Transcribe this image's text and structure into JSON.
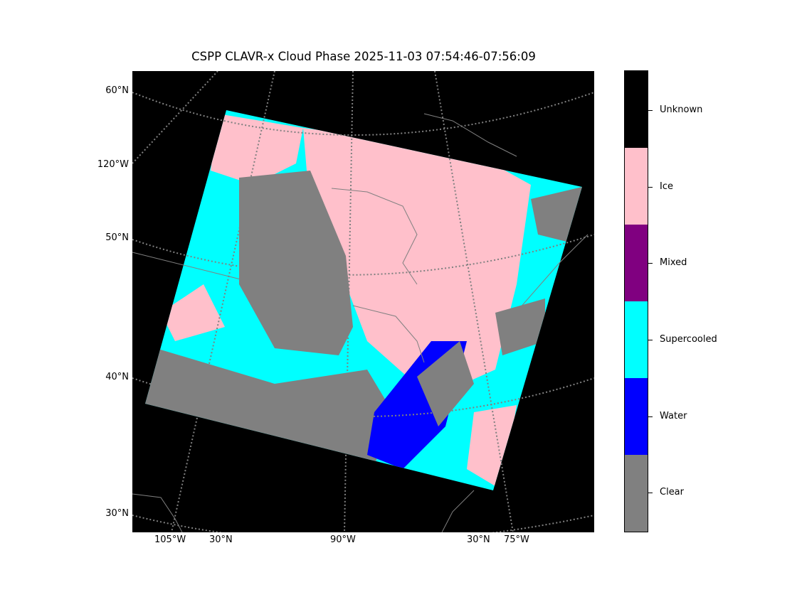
{
  "title": "CSPP CLAVR-x Cloud Phase 2025-11-03 07:54:46-07:56:09",
  "map": {
    "background_color": "#000000",
    "graticule_color": "#808080",
    "coastline_color": "#808080",
    "lat_labels_left": [
      "60°N",
      "120°W",
      "50°N",
      "40°N",
      "30°N"
    ],
    "lon_labels_bottom": [
      "105°W",
      "30°N",
      "90°W",
      "30°N",
      "75°W"
    ]
  },
  "colorbar": {
    "categories": [
      {
        "label": "Unknown",
        "color": "#000000"
      },
      {
        "label": "Ice",
        "color": "#ffc0cb"
      },
      {
        "label": "Mixed",
        "color": "#800080"
      },
      {
        "label": "Supercooled",
        "color": "#00ffff"
      },
      {
        "label": "Water",
        "color": "#0000ff"
      },
      {
        "label": "Clear",
        "color": "#808080"
      }
    ]
  }
}
